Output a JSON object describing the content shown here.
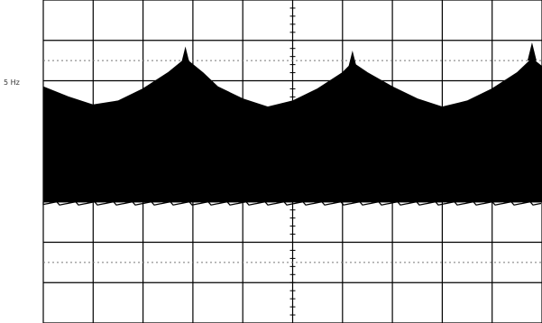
{
  "screen": {
    "trace_marker": "5 Hz"
  },
  "colors": {
    "background": "#ffffff",
    "grid": "#000000",
    "trace": "#000000",
    "dotted": "#777777"
  },
  "chart_data": {
    "type": "area",
    "title": "",
    "xlabel": "",
    "ylabel": "",
    "grid": true,
    "x_divisions": 10,
    "y_divisions": 8,
    "xlim": [
      0,
      10
    ],
    "ylim": [
      0,
      8
    ],
    "baseline": 3.0,
    "series": [
      {
        "x": [
          0.0,
          0.5,
          1.0,
          1.5,
          2.0,
          2.5,
          2.85,
          3.2,
          3.5,
          4.0,
          4.5,
          5.0,
          5.5,
          6.0,
          6.2,
          6.5,
          7.0,
          7.5,
          8.0,
          8.5,
          9.0,
          9.5,
          9.8,
          10.0
        ],
        "y": [
          5.85,
          5.6,
          5.4,
          5.5,
          5.8,
          6.2,
          6.55,
          6.2,
          5.85,
          5.55,
          5.35,
          5.5,
          5.8,
          6.2,
          6.45,
          6.2,
          5.85,
          5.55,
          5.35,
          5.5,
          5.8,
          6.2,
          6.55,
          6.35
        ]
      }
    ],
    "spikes": [
      {
        "x": 2.85,
        "y": 6.85
      },
      {
        "x": 6.2,
        "y": 6.75
      },
      {
        "x": 9.8,
        "y": 6.95
      }
    ]
  }
}
